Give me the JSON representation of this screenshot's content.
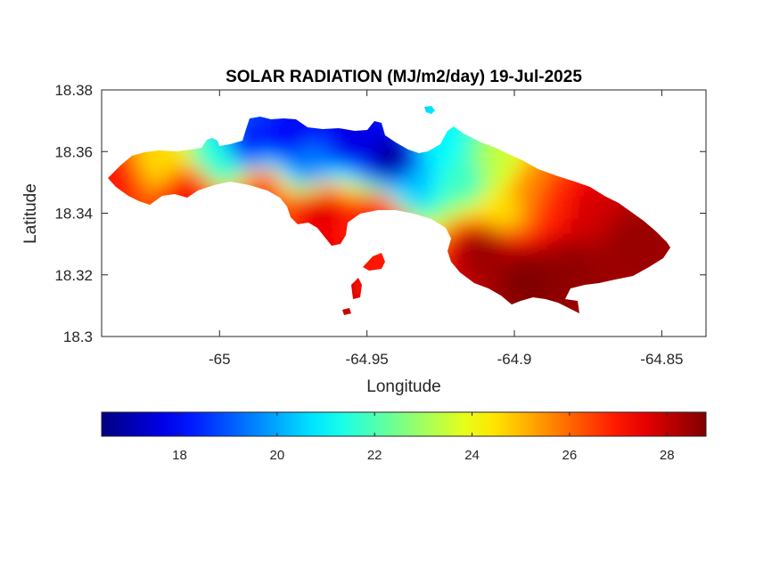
{
  "chart_data": {
    "type": "heatmap",
    "title": "SOLAR RADIATION (MJ/m2/day) 19-Jul-2025",
    "xlabel": "Longitude",
    "ylabel": "Latitude",
    "xlim": [
      -65.04,
      -64.835
    ],
    "ylim": [
      18.3,
      18.38
    ],
    "xticks": [
      -65,
      -64.95,
      -64.9,
      -64.85
    ],
    "xtick_labels": [
      "-65",
      "-64.95",
      "-64.9",
      "-64.85"
    ],
    "yticks": [
      18.3,
      18.32,
      18.34,
      18.36,
      18.38
    ],
    "ytick_labels": [
      "18.3",
      "18.32",
      "18.34",
      "18.36",
      "18.38"
    ],
    "colormap": "jet",
    "colorbar": {
      "orientation": "horizontal",
      "location": "bottom",
      "clim": [
        16.4,
        28.8
      ],
      "ticks": [
        18,
        20,
        22,
        24,
        26,
        28
      ],
      "tick_labels": [
        "18",
        "20",
        "22",
        "24",
        "26",
        "28"
      ]
    },
    "grid": false,
    "field_samples": [
      {
        "lon": -65.035,
        "lat": 18.351,
        "value": 27.0
      },
      {
        "lon": -65.02,
        "lat": 18.356,
        "value": 24.6
      },
      {
        "lon": -65.01,
        "lat": 18.346,
        "value": 27.4
      },
      {
        "lon": -65.0,
        "lat": 18.357,
        "value": 21.5
      },
      {
        "lon": -64.99,
        "lat": 18.362,
        "value": 18.3
      },
      {
        "lon": -64.985,
        "lat": 18.346,
        "value": 26.6
      },
      {
        "lon": -64.975,
        "lat": 18.364,
        "value": 17.8
      },
      {
        "lon": -64.97,
        "lat": 18.356,
        "value": 19.5
      },
      {
        "lon": -64.965,
        "lat": 18.34,
        "value": 27.6
      },
      {
        "lon": -64.955,
        "lat": 18.364,
        "value": 17.6
      },
      {
        "lon": -64.94,
        "lat": 18.356,
        "value": 16.6
      },
      {
        "lon": -64.935,
        "lat": 18.348,
        "value": 20.4
      },
      {
        "lon": -64.945,
        "lat": 18.338,
        "value": 27.2
      },
      {
        "lon": -64.925,
        "lat": 18.361,
        "value": 21.0
      },
      {
        "lon": -64.915,
        "lat": 18.35,
        "value": 21.8
      },
      {
        "lon": -64.905,
        "lat": 18.354,
        "value": 23.4
      },
      {
        "lon": -64.905,
        "lat": 18.341,
        "value": 24.5
      },
      {
        "lon": -64.895,
        "lat": 18.348,
        "value": 25.6
      },
      {
        "lon": -64.885,
        "lat": 18.343,
        "value": 26.8
      },
      {
        "lon": -64.875,
        "lat": 18.34,
        "value": 27.8
      },
      {
        "lon": -64.91,
        "lat": 18.328,
        "value": 28.5
      },
      {
        "lon": -64.895,
        "lat": 18.318,
        "value": 28.8
      },
      {
        "lon": -64.88,
        "lat": 18.322,
        "value": 28.6
      },
      {
        "lon": -64.86,
        "lat": 18.33,
        "value": 28.5
      },
      {
        "lon": -64.948,
        "lat": 18.323,
        "value": 27.0
      },
      {
        "lon": -64.965,
        "lat": 18.316,
        "value": 28.4
      }
    ]
  }
}
